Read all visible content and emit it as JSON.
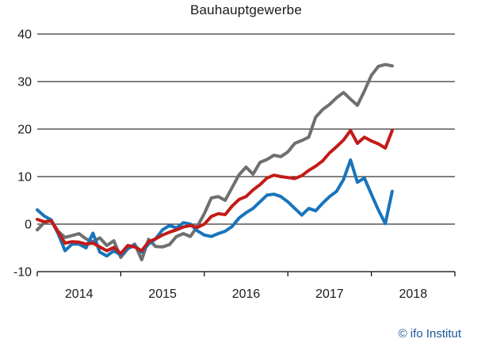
{
  "chart_data": {
    "type": "line",
    "title": "Bauhauptgewerbe",
    "y_axis": {
      "min": -10,
      "max": 40,
      "ticks": [
        40,
        30,
        20,
        10,
        0,
        -10
      ]
    },
    "x_axis": {
      "year_labels": [
        "2014",
        "2015",
        "2016",
        "2017",
        "2018"
      ],
      "start_month": "2014-01",
      "end_month": "2018-04",
      "total_month_span": 60
    },
    "grid": "horizontal-only",
    "legend": "none",
    "axis_color": "#000000",
    "series": [
      {
        "name": "gray-series",
        "color": "#6f6f6f",
        "values": [
          -1.2,
          0.3,
          0.8,
          -1.5,
          -2.8,
          -2.4,
          -2.0,
          -3.1,
          -3.7,
          -2.9,
          -4.5,
          -3.5,
          -7.0,
          -5.2,
          -4.2,
          -7.5,
          -3.2,
          -4.7,
          -4.8,
          -4.3,
          -2.6,
          -2.0,
          -2.6,
          -0.5,
          2.2,
          5.5,
          5.8,
          5.0,
          7.7,
          10.4,
          12.0,
          10.5,
          13.0,
          13.6,
          14.5,
          14.2,
          15.2,
          17.0,
          17.6,
          18.3,
          22.5,
          24.1,
          25.2,
          26.6,
          27.7,
          26.3,
          25.0,
          28.0,
          31.3,
          33.2,
          33.6,
          33.3
        ]
      },
      {
        "name": "blue-series",
        "color": "#1874bc",
        "values": [
          3.0,
          1.7,
          0.9,
          -2.0,
          -5.6,
          -4.2,
          -4.2,
          -5.0,
          -1.9,
          -5.9,
          -6.7,
          -5.6,
          -6.5,
          -5.1,
          -4.5,
          -5.9,
          -4.2,
          -3.1,
          -1.2,
          -0.3,
          -0.8,
          0.3,
          0.0,
          -1.4,
          -2.3,
          -2.6,
          -2.0,
          -1.5,
          -0.5,
          1.3,
          2.4,
          3.3,
          4.7,
          6.1,
          6.3,
          5.8,
          4.7,
          3.3,
          1.9,
          3.3,
          2.8,
          4.4,
          5.8,
          6.9,
          9.4,
          13.5,
          8.8,
          9.7,
          6.3,
          3.0,
          0.1,
          6.9
        ]
      },
      {
        "name": "red-series",
        "color": "#c21b17",
        "values": [
          1.0,
          0.5,
          0.7,
          -1.7,
          -4.0,
          -3.7,
          -3.8,
          -4.2,
          -4.0,
          -4.8,
          -5.6,
          -4.9,
          -6.2,
          -4.5,
          -4.8,
          -5.6,
          -3.7,
          -3.1,
          -2.3,
          -1.7,
          -1.2,
          -0.6,
          -0.3,
          -0.7,
          0.0,
          1.6,
          2.2,
          2.0,
          3.8,
          5.2,
          5.8,
          7.2,
          8.3,
          9.7,
          10.3,
          10.0,
          9.8,
          9.6,
          10.2,
          11.3,
          12.2,
          13.3,
          15.0,
          16.3,
          17.7,
          19.7,
          17.0,
          18.3,
          17.5,
          16.9,
          16.0,
          19.7
        ]
      }
    ]
  },
  "footer": {
    "attribution": "© ifo Institut",
    "attribution_color": "#1b5796"
  }
}
